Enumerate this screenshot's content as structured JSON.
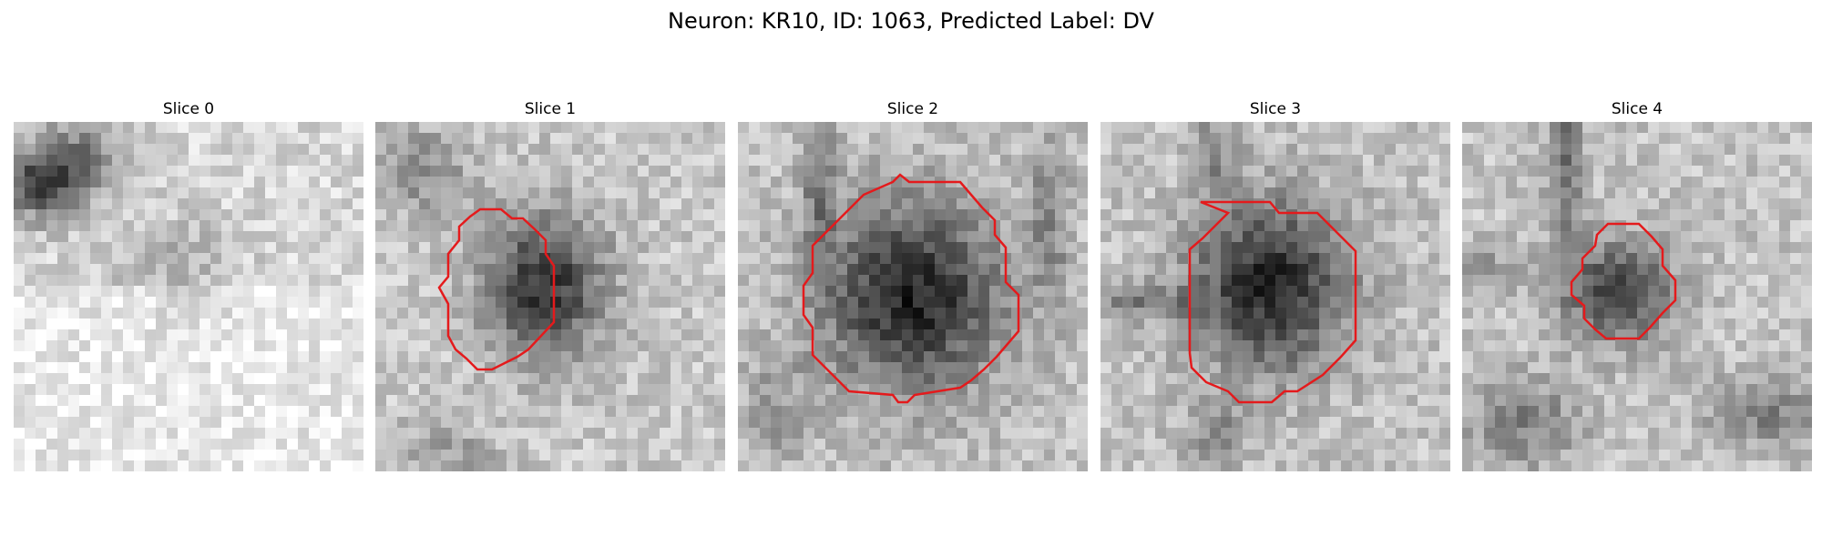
{
  "figure": {
    "title": "Neuron: KR10, ID: 1063, Predicted Label: DV",
    "colors": {
      "contour": "#e41a1c",
      "background": "#ffffff"
    },
    "panels": [
      {
        "title": "Slice 0",
        "has_contour": false
      },
      {
        "title": "Slice 1",
        "has_contour": true
      },
      {
        "title": "Slice 2",
        "has_contour": true
      },
      {
        "title": "Slice 3",
        "has_contour": true
      },
      {
        "title": "Slice 4",
        "has_contour": true
      }
    ]
  }
}
